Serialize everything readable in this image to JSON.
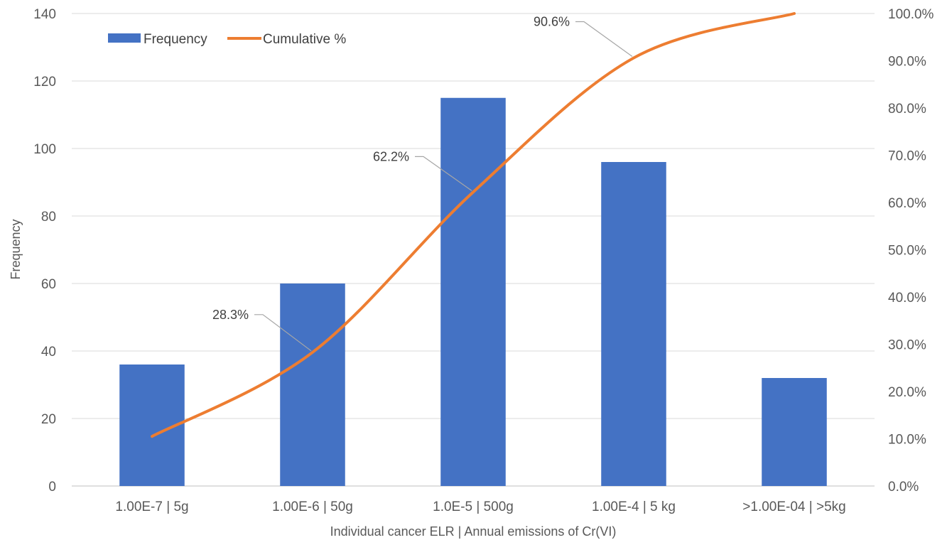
{
  "chart_data": {
    "type": "bar",
    "title": "",
    "xlabel": "Individual cancer ELR | Annual emissions of Cr(VI)",
    "ylabel": "Frequency",
    "y2label": "",
    "categories": [
      "1.00E-7 | 5g",
      "1.00E-6 | 50g",
      "1.0E-5 | 500g",
      "1.00E-4 | 5 kg",
      ">1.00E-04 | >5kg"
    ],
    "ylim": [
      0,
      140
    ],
    "yticks": [
      0,
      20,
      40,
      60,
      80,
      100,
      120,
      140
    ],
    "y2lim": [
      0,
      100
    ],
    "y2ticks": [
      "0.0%",
      "10.0%",
      "20.0%",
      "30.0%",
      "40.0%",
      "50.0%",
      "60.0%",
      "70.0%",
      "80.0%",
      "90.0%",
      "100.0%"
    ],
    "grid": true,
    "legend_position": "top-left",
    "series": [
      {
        "name": "Frequency",
        "type": "bar",
        "axis": "left",
        "color": "#4472C4",
        "values": [
          36,
          60,
          115,
          96,
          32
        ]
      },
      {
        "name": "Cumulative %",
        "type": "line",
        "axis": "right",
        "color": "#ED7D31",
        "smooth": true,
        "values": [
          10.5,
          28.3,
          62.2,
          90.6,
          100.0
        ]
      }
    ],
    "annotations": [
      {
        "text": "28.3%",
        "category_index": 1,
        "series": "Cumulative %"
      },
      {
        "text": "62.2%",
        "category_index": 2,
        "series": "Cumulative %"
      },
      {
        "text": "90.6%",
        "category_index": 3,
        "series": "Cumulative %"
      }
    ]
  }
}
